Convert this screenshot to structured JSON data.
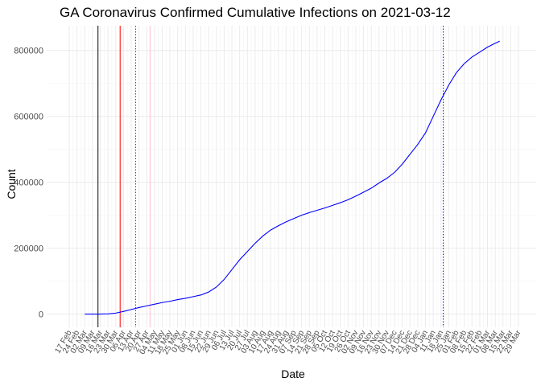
{
  "chart_data": {
    "type": "line",
    "title": "GA Coronavirus Confirmed Cumulative Infections on 2021-03-12",
    "xlabel": "Date",
    "ylabel": "Count",
    "ylim": [
      -40000,
      875000
    ],
    "y_ticks": [
      0,
      200000,
      400000,
      600000,
      800000
    ],
    "y_tick_labels": [
      "0",
      "200000",
      "400000",
      "600000",
      "800000"
    ],
    "xlim": [
      "2020-02-17",
      "2021-03-29"
    ],
    "x_ticks": [
      "2020-02-17",
      "2020-02-24",
      "2020-03-02",
      "2020-03-09",
      "2020-03-16",
      "2020-03-23",
      "2020-03-30",
      "2020-04-06",
      "2020-04-13",
      "2020-04-20",
      "2020-04-27",
      "2020-05-04",
      "2020-05-11",
      "2020-05-18",
      "2020-05-25",
      "2020-06-01",
      "2020-06-08",
      "2020-06-15",
      "2020-06-22",
      "2020-06-29",
      "2020-07-06",
      "2020-07-13",
      "2020-07-20",
      "2020-07-27",
      "2020-08-03",
      "2020-08-10",
      "2020-08-17",
      "2020-08-24",
      "2020-08-31",
      "2020-09-07",
      "2020-09-14",
      "2020-09-21",
      "2020-09-28",
      "2020-10-05",
      "2020-10-12",
      "2020-10-19",
      "2020-10-26",
      "2020-11-02",
      "2020-11-09",
      "2020-11-16",
      "2020-11-23",
      "2020-11-30",
      "2020-12-07",
      "2020-12-14",
      "2020-12-21",
      "2020-12-28",
      "2021-01-04",
      "2021-01-11",
      "2021-01-18",
      "2021-01-25",
      "2021-02-01",
      "2021-02-08",
      "2021-02-15",
      "2021-02-22",
      "2021-03-01",
      "2021-03-08",
      "2021-03-15",
      "2021-03-22",
      "2021-03-29"
    ],
    "x_tick_labels": [
      "17 Feb",
      "24 Feb",
      "02 Mar",
      "09 Mar",
      "16 Mar",
      "23 Mar",
      "30 Mar",
      "06 Apr",
      "13 Apr",
      "20 Apr",
      "27 Apr",
      "04 May",
      "11 May",
      "18 May",
      "25 May",
      "01 Jun",
      "08 Jun",
      "15 Jun",
      "22 Jun",
      "29 Jun",
      "06 Jul",
      "13 Jul",
      "20 Jul",
      "27 Jul",
      "03 Aug",
      "10 Aug",
      "17 Aug",
      "24 Aug",
      "31 Aug",
      "07 Sep",
      "14 Sep",
      "21 Sep",
      "28 Sep",
      "05 Oct",
      "12 Oct",
      "19 Oct",
      "26 Oct",
      "02 Nov",
      "09 Nov",
      "16 Nov",
      "23 Nov",
      "30 Nov",
      "07 Dec",
      "14 Dec",
      "21 Dec",
      "28 Dec",
      "04 Jan",
      "11 Jan",
      "18 Jan",
      "25 Jan",
      "01 Feb",
      "08 Feb",
      "15 Feb",
      "22 Feb",
      "01 Mar",
      "08 Mar",
      "15 Mar",
      "22 Mar",
      "29 Mar"
    ],
    "grid": true,
    "series": [
      {
        "color": "#0000ff",
        "points": [
          [
            "2020-03-02",
            0
          ],
          [
            "2020-03-09",
            10
          ],
          [
            "2020-03-16",
            150
          ],
          [
            "2020-03-23",
            800
          ],
          [
            "2020-03-30",
            3000
          ],
          [
            "2020-04-06",
            8000
          ],
          [
            "2020-04-13",
            14000
          ],
          [
            "2020-04-20",
            20000
          ],
          [
            "2020-04-27",
            25000
          ],
          [
            "2020-05-04",
            30000
          ],
          [
            "2020-05-11",
            35000
          ],
          [
            "2020-05-18",
            39000
          ],
          [
            "2020-05-25",
            44000
          ],
          [
            "2020-06-01",
            48000
          ],
          [
            "2020-06-08",
            53000
          ],
          [
            "2020-06-15",
            58000
          ],
          [
            "2020-06-22",
            67000
          ],
          [
            "2020-06-29",
            82000
          ],
          [
            "2020-07-06",
            105000
          ],
          [
            "2020-07-13",
            135000
          ],
          [
            "2020-07-20",
            165000
          ],
          [
            "2020-07-27",
            190000
          ],
          [
            "2020-08-03",
            215000
          ],
          [
            "2020-08-10",
            237000
          ],
          [
            "2020-08-17",
            255000
          ],
          [
            "2020-08-24",
            268000
          ],
          [
            "2020-08-31",
            280000
          ],
          [
            "2020-09-07",
            290000
          ],
          [
            "2020-09-14",
            300000
          ],
          [
            "2020-09-21",
            308000
          ],
          [
            "2020-09-28",
            315000
          ],
          [
            "2020-10-05",
            322000
          ],
          [
            "2020-10-12",
            330000
          ],
          [
            "2020-10-19",
            338000
          ],
          [
            "2020-10-26",
            347000
          ],
          [
            "2020-11-02",
            358000
          ],
          [
            "2020-11-09",
            370000
          ],
          [
            "2020-11-16",
            382000
          ],
          [
            "2020-11-23",
            398000
          ],
          [
            "2020-11-30",
            412000
          ],
          [
            "2020-12-07",
            430000
          ],
          [
            "2020-12-14",
            455000
          ],
          [
            "2020-12-21",
            485000
          ],
          [
            "2020-12-28",
            515000
          ],
          [
            "2021-01-04",
            550000
          ],
          [
            "2021-01-11",
            600000
          ],
          [
            "2021-01-18",
            650000
          ],
          [
            "2021-01-25",
            695000
          ],
          [
            "2021-02-01",
            733000
          ],
          [
            "2021-02-08",
            760000
          ],
          [
            "2021-02-15",
            780000
          ],
          [
            "2021-02-22",
            795000
          ],
          [
            "2021-03-01",
            810000
          ],
          [
            "2021-03-08",
            822000
          ],
          [
            "2021-03-12",
            828000
          ]
        ]
      }
    ],
    "vlines": [
      {
        "date": "2020-03-14",
        "color": "#000000",
        "style": "solid"
      },
      {
        "date": "2020-04-03",
        "color": "#ff0000",
        "style": "solid"
      },
      {
        "date": "2020-04-17",
        "color": "#ff0000",
        "style": "dotted"
      },
      {
        "date": "2020-04-30",
        "color": "#ffc0cb",
        "style": "solid"
      },
      {
        "date": "2021-01-20",
        "color": "#0000ff",
        "style": "dotted"
      }
    ]
  }
}
